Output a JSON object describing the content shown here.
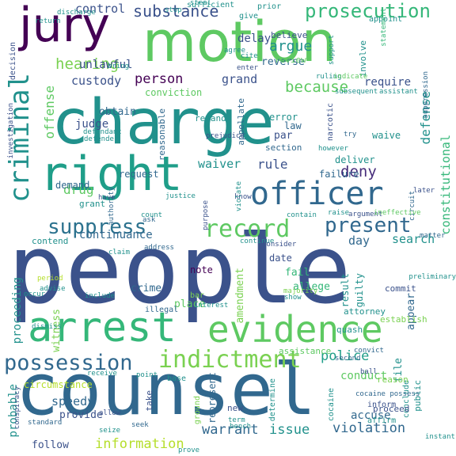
{
  "word_cloud": {
    "words": [
      {
        "text": "people",
        "color": "#3b528b"
      },
      {
        "text": "counsel",
        "color": "#31688e"
      },
      {
        "text": "charge",
        "color": "#21918c"
      },
      {
        "text": "motion",
        "color": "#5ec962"
      },
      {
        "text": "right",
        "color": "#1f9e89"
      },
      {
        "text": "arrest",
        "color": "#35b779"
      },
      {
        "text": "evidence",
        "color": "#5ec962"
      },
      {
        "text": "jury",
        "color": "#440154"
      },
      {
        "text": "officer",
        "color": "#31688e"
      },
      {
        "text": "criminal",
        "color": "#21918c"
      },
      {
        "text": "record",
        "color": "#5ec962"
      },
      {
        "text": "indictment",
        "color": "#7ad151"
      },
      {
        "text": "possession",
        "color": "#31688e"
      },
      {
        "text": "suppress",
        "color": "#2c728e"
      },
      {
        "text": "prosecution",
        "color": "#35b779"
      },
      {
        "text": "present",
        "color": "#31688e"
      },
      {
        "text": "substance",
        "color": "#3b528b"
      },
      {
        "text": "hearing",
        "color": "#7ad151"
      },
      {
        "text": "because",
        "color": "#5ec962"
      },
      {
        "text": "deny",
        "color": "#472d7b"
      },
      {
        "text": "person",
        "color": "#440154"
      },
      {
        "text": "argue",
        "color": "#21918c"
      },
      {
        "text": "information",
        "color": "#b5de2b"
      },
      {
        "text": "warrant",
        "color": "#31688e"
      },
      {
        "text": "issue",
        "color": "#21918c"
      },
      {
        "text": "violation",
        "color": "#31688e"
      },
      {
        "text": "police",
        "color": "#1f9e89"
      },
      {
        "text": "speedy",
        "color": "#31688e"
      },
      {
        "text": "constitutional",
        "color": "#35b779"
      },
      {
        "text": "defense",
        "color": "#21918c"
      },
      {
        "text": "offense",
        "color": "#5ec962"
      },
      {
        "text": "control",
        "color": "#3b528b"
      },
      {
        "text": "custody",
        "color": "#3b528b"
      },
      {
        "text": "judge",
        "color": "#3b528b"
      },
      {
        "text": "drug",
        "color": "#5ec962"
      },
      {
        "text": "rule",
        "color": "#3b528b"
      },
      {
        "text": "waiver",
        "color": "#21918c"
      },
      {
        "text": "continuance",
        "color": "#31688e"
      },
      {
        "text": "search",
        "color": "#21918c"
      },
      {
        "text": "day",
        "color": "#31688e"
      },
      {
        "text": "proceeding",
        "color": "#21918c"
      },
      {
        "text": "conduct",
        "color": "#5ec962"
      },
      {
        "text": "accuse",
        "color": "#31688e"
      },
      {
        "text": "probable",
        "color": "#21918c"
      },
      {
        "text": "grand",
        "color": "#3b528b"
      },
      {
        "text": "obtain",
        "color": "#31688e"
      },
      {
        "text": "unlawful",
        "color": "#3b528b"
      },
      {
        "text": "require",
        "color": "#3b528b"
      },
      {
        "text": "delay",
        "color": "#3b528b"
      },
      {
        "text": "reverse",
        "color": "#31688e"
      },
      {
        "text": "crime",
        "color": "#31688e"
      },
      {
        "text": "place",
        "color": "#5ec962"
      },
      {
        "text": "fail",
        "color": "#35b779"
      },
      {
        "text": "allege",
        "color": "#35b779"
      },
      {
        "text": "appear",
        "color": "#31688e"
      },
      {
        "text": "witness",
        "color": "#7ad151"
      },
      {
        "text": "amendment",
        "color": "#7ad151"
      },
      {
        "text": "provide",
        "color": "#3b528b"
      },
      {
        "text": "follow",
        "color": "#3b528b"
      },
      {
        "text": "file",
        "color": "#21918c"
      },
      {
        "text": "circumstance",
        "color": "#b5de2b"
      },
      {
        "text": "represent",
        "color": "#31688e"
      },
      {
        "text": "result",
        "color": "#21918c"
      },
      {
        "text": "guilty",
        "color": "#21918c"
      },
      {
        "text": "note",
        "color": "#440154"
      },
      {
        "text": "date",
        "color": "#3b528b"
      },
      {
        "text": "demand",
        "color": "#31688e"
      },
      {
        "text": "request",
        "color": "#31688e"
      },
      {
        "text": "deliver",
        "color": "#21918c"
      },
      {
        "text": "failure",
        "color": "#31688e"
      },
      {
        "text": "waive",
        "color": "#21918c"
      },
      {
        "text": "grant",
        "color": "#21918c"
      },
      {
        "text": "contend",
        "color": "#21918c"
      },
      {
        "text": "remand",
        "color": "#21918c"
      },
      {
        "text": "conviction",
        "color": "#5ec962"
      },
      {
        "text": "error",
        "color": "#21918c"
      },
      {
        "text": "law",
        "color": "#31688e"
      },
      {
        "text": "par",
        "color": "#3b528b"
      },
      {
        "text": "section",
        "color": "#31688e"
      },
      {
        "text": "believe",
        "color": "#3b528b"
      },
      {
        "text": "review",
        "color": "#5ec962"
      },
      {
        "text": "involve",
        "color": "#21918c"
      },
      {
        "text": "appellate",
        "color": "#31688e"
      },
      {
        "text": "reasonable",
        "color": "#31688e"
      },
      {
        "text": "decision",
        "color": "#3b528b"
      },
      {
        "text": "narcotic",
        "color": "#3b528b"
      },
      {
        "text": "defender",
        "color": "#21918c"
      },
      {
        "text": "authority",
        "color": "#31688e"
      },
      {
        "text": "cocaine",
        "color": "#21918c"
      },
      {
        "text": "inform",
        "color": "#3b528b"
      },
      {
        "text": "affirm",
        "color": "#21918c"
      },
      {
        "text": "determine",
        "color": "#21918c"
      },
      {
        "text": "assistance",
        "color": "#5ec962"
      },
      {
        "text": "conclude",
        "color": "#21918c"
      },
      {
        "text": "public",
        "color": "#21918c"
      },
      {
        "text": "reason",
        "color": "#7ad151"
      },
      {
        "text": "proceed",
        "color": "#3b528b"
      },
      {
        "text": "attorney",
        "color": "#21918c"
      },
      {
        "text": "establish",
        "color": "#7ad151"
      },
      {
        "text": "commit",
        "color": "#3b528b"
      },
      {
        "text": "illegal",
        "color": "#31688e"
      },
      {
        "text": "new",
        "color": "#3b528b"
      },
      {
        "text": "take",
        "color": "#3b528b"
      },
      {
        "text": "quash",
        "color": "#21918c"
      },
      {
        "text": "bar",
        "color": "#7ad151"
      },
      {
        "text": "base",
        "color": "#21918c"
      },
      {
        "text": "majority",
        "color": "#7ad151"
      },
      {
        "text": "give",
        "color": "#21918c"
      },
      {
        "text": "prior",
        "color": "#21918c"
      },
      {
        "text": "sufficient",
        "color": "#21918c"
      },
      {
        "text": "appoint",
        "color": "#21918c"
      },
      {
        "text": "statement",
        "color": "#35b779"
      },
      {
        "text": "return",
        "color": "#21918c"
      },
      {
        "text": "circuit",
        "color": "#31688e"
      },
      {
        "text": "contain",
        "color": "#21918c"
      },
      {
        "text": "raise",
        "color": "#21918c"
      },
      {
        "text": "argument",
        "color": "#3b528b"
      },
      {
        "text": "continue",
        "color": "#21918c"
      },
      {
        "text": "consider",
        "color": "#3b528b"
      },
      {
        "text": "matter",
        "color": "#31688e"
      },
      {
        "text": "show",
        "color": "#21918c"
      },
      {
        "text": "interest",
        "color": "#21918c"
      },
      {
        "text": "period",
        "color": "#b5de2b"
      },
      {
        "text": "ground",
        "color": "#7ad151"
      },
      {
        "text": "convict",
        "color": "#31688e"
      },
      {
        "text": "ball",
        "color": "#3b528b"
      },
      {
        "text": "second",
        "color": "#31688e"
      },
      {
        "text": "cocaine possess",
        "color": "#31688e"
      },
      {
        "text": "standard",
        "color": "#31688e"
      },
      {
        "text": "allow",
        "color": "#3b528b"
      },
      {
        "text": "seek",
        "color": "#31688e"
      },
      {
        "text": "bench",
        "color": "#21918c"
      },
      {
        "text": "term",
        "color": "#21918c"
      },
      {
        "text": "seize",
        "color": "#21918c"
      },
      {
        "text": "conspiracy",
        "color": "#3b528b"
      },
      {
        "text": "try",
        "color": "#31688e"
      },
      {
        "text": "know",
        "color": "#3b528b"
      },
      {
        "text": "have",
        "color": "#3b528b"
      },
      {
        "text": "justice",
        "color": "#21918c"
      },
      {
        "text": "ask",
        "color": "#31688e"
      },
      {
        "text": "address",
        "color": "#31688e"
      },
      {
        "text": "advise",
        "color": "#21918c"
      },
      {
        "text": "later",
        "color": "#3b528b"
      },
      {
        "text": "ineffective",
        "color": "#5ec962"
      },
      {
        "text": "prejudice",
        "color": "#3b528b"
      },
      {
        "text": "purpose",
        "color": "#3b528b"
      },
      {
        "text": "violate",
        "color": "#21918c"
      },
      {
        "text": "stop",
        "color": "#21918c"
      },
      {
        "text": "bring",
        "color": "#21918c"
      },
      {
        "text": "support",
        "color": "#21918c"
      },
      {
        "text": "cite",
        "color": "#21918c"
      },
      {
        "text": "enter",
        "color": "#3b528b"
      },
      {
        "text": "ruling",
        "color": "#21918c"
      },
      {
        "text": "indicate",
        "color": "#5ec962"
      },
      {
        "text": "subsequent",
        "color": "#21918c"
      },
      {
        "text": "assistant",
        "color": "#21918c"
      },
      {
        "text": "defendant",
        "color": "#21918c"
      },
      {
        "text": "preliminary",
        "color": "#21918c"
      },
      {
        "text": "suppression",
        "color": "#31688e"
      },
      {
        "text": "investigation",
        "color": "#3b528b"
      },
      {
        "text": "instant",
        "color": "#21918c"
      },
      {
        "text": "dismiss",
        "color": "#21918c"
      },
      {
        "text": "discharge",
        "color": "#21918c"
      },
      {
        "text": "steal",
        "color": "#21918c"
      },
      {
        "text": "however",
        "color": "#21918c"
      },
      {
        "text": "point",
        "color": "#21918c"
      },
      {
        "text": "claim",
        "color": "#21918c"
      },
      {
        "text": "occur",
        "color": "#21918c"
      },
      {
        "text": "include",
        "color": "#21918c"
      },
      {
        "text": "count",
        "color": "#21918c"
      },
      {
        "text": "prove",
        "color": "#21918c"
      },
      {
        "text": "receive",
        "color": "#21918c"
      },
      {
        "text": "agree",
        "color": "#21918c"
      }
    ]
  }
}
